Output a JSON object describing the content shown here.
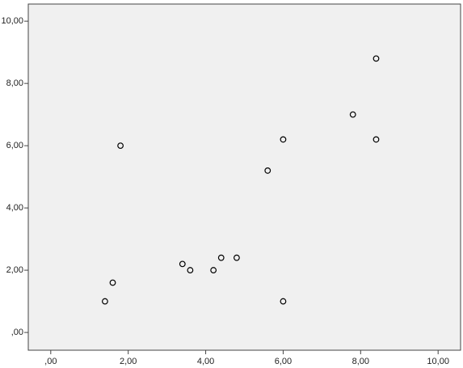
{
  "chart_data": {
    "type": "scatter",
    "x": [
      1.4,
      1.6,
      1.8,
      3.4,
      3.6,
      4.2,
      4.4,
      4.8,
      5.6,
      6.0,
      6.0,
      7.8,
      8.4,
      8.4
    ],
    "values": [
      1.0,
      1.6,
      6.0,
      2.2,
      2.0,
      2.0,
      2.4,
      2.4,
      5.2,
      6.2,
      1.0,
      7.0,
      6.2,
      8.8
    ],
    "color": "#000000",
    "xlim": [
      -0.58,
      10.58
    ],
    "ylim": [
      -0.57,
      10.55
    ],
    "xticks": [
      {
        "value": 0,
        "label": ",00"
      },
      {
        "value": 2,
        "label": "2,00"
      },
      {
        "value": 4,
        "label": "4,00"
      },
      {
        "value": 6,
        "label": "6,00"
      },
      {
        "value": 8,
        "label": "8,00"
      },
      {
        "value": 10,
        "label": "10,00"
      }
    ],
    "yticks": [
      {
        "value": 0,
        "label": ",00"
      },
      {
        "value": 2,
        "label": "2,00"
      },
      {
        "value": 4,
        "label": "4,00"
      },
      {
        "value": 6,
        "label": "6,00"
      },
      {
        "value": 8,
        "label": "8,00"
      },
      {
        "value": 10,
        "label": "10,00"
      }
    ],
    "grid": false
  }
}
